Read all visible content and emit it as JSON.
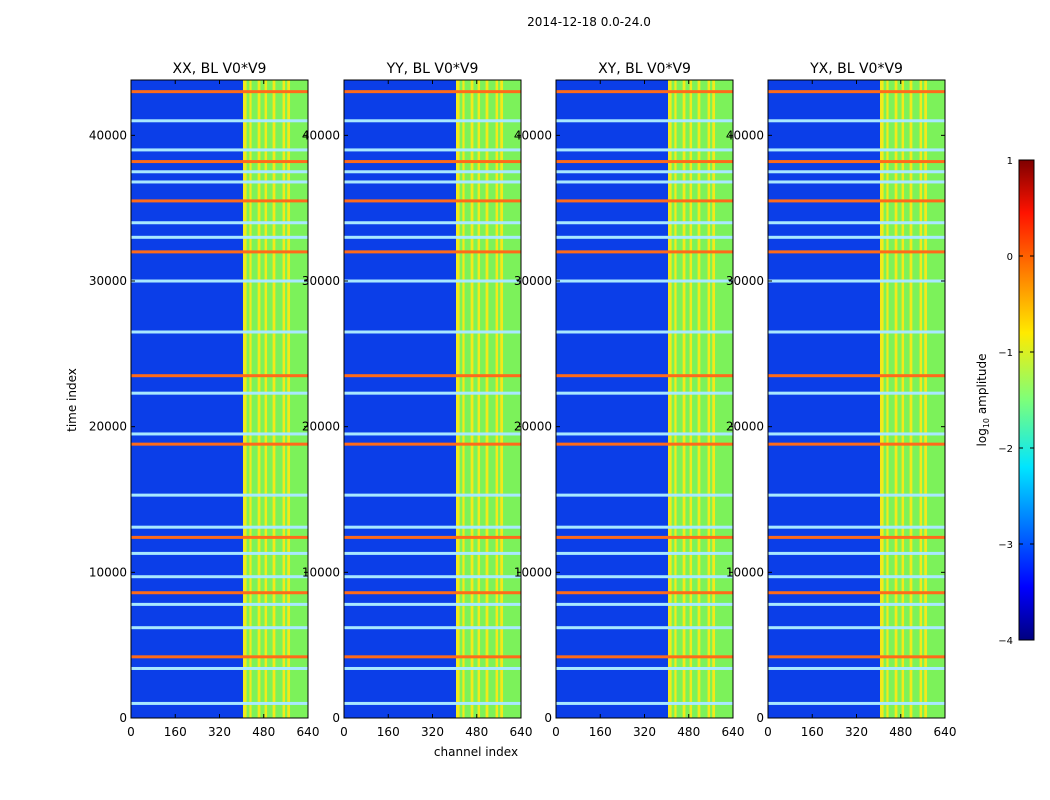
{
  "figure_title": "2014-12-18 0.0-24.0",
  "chart_data": {
    "type": "heatmap",
    "suptitle": "2014-12-18 0.0-24.0",
    "xlabel": "channel index",
    "ylabel": "time index",
    "xlim": [
      0,
      640
    ],
    "ylim": [
      0,
      43800
    ],
    "xticks": [
      0,
      160,
      320,
      480,
      640
    ],
    "yticks": [
      0,
      10000,
      20000,
      30000,
      40000
    ],
    "panels": [
      {
        "title": "XX, BL V0*V9",
        "pol": "XX"
      },
      {
        "title": "YY, BL V0*V9",
        "pol": "YY"
      },
      {
        "title": "XY, BL V0*V9",
        "pol": "XY"
      },
      {
        "title": "YX, BL V0*V9",
        "pol": "YX"
      }
    ],
    "colorbar": {
      "label": "log10 amplitude",
      "label_main": "log",
      "label_sub": "10",
      "label_tail": " amplitude",
      "range": [
        -4,
        1
      ],
      "ticks": [
        "1",
        "0",
        "−1",
        "−2",
        "−3",
        "−4"
      ],
      "colormap": "jet"
    },
    "rfi_band_channels": [
      [
        405,
        640
      ]
    ],
    "rfi_band_columns": [
      [
        405,
        418
      ],
      [
        428,
        436
      ],
      [
        458,
        468
      ],
      [
        483,
        492
      ],
      [
        512,
        522
      ],
      [
        548,
        557
      ],
      [
        565,
        575
      ]
    ],
    "rfi_time_rows": [
      43000,
      41000,
      39000,
      38200,
      37500,
      36800,
      35500,
      34000,
      33000,
      32000,
      30000,
      26500,
      23500,
      22300,
      19500,
      18800,
      15300,
      13100,
      12400,
      11300,
      9700,
      8600,
      7800,
      6200,
      4200,
      3400,
      1000
    ]
  }
}
